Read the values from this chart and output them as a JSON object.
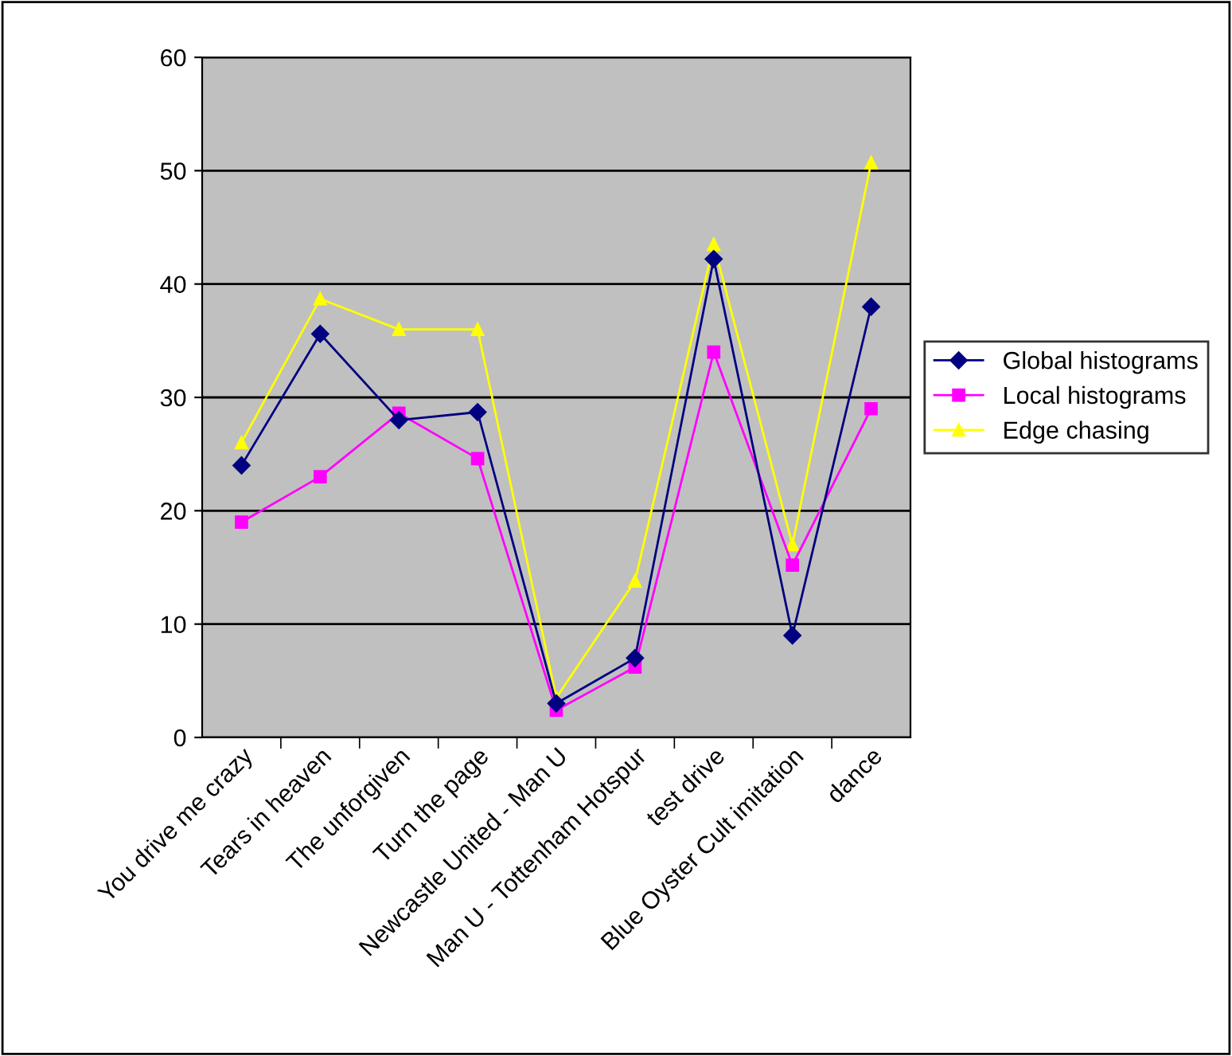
{
  "chart_data": {
    "type": "line",
    "categories": [
      "You drive me crazy",
      "Tears in heaven",
      "The unforgiven",
      "Turn the page",
      "Newcastle United - Man U",
      "Man U - Tottenham Hotspur",
      "test drive",
      "Blue Oyster Cult imitation",
      "dance"
    ],
    "series": [
      {
        "name": "Global histograms",
        "color": "#000080",
        "marker": "diamond",
        "values": [
          24,
          35.6,
          28,
          28.7,
          3,
          7,
          42.2,
          9,
          38
        ]
      },
      {
        "name": "Local histograms",
        "color": "#ff00ff",
        "marker": "square",
        "values": [
          19,
          23,
          28.6,
          24.6,
          2.4,
          6.2,
          34,
          15.2,
          29
        ]
      },
      {
        "name": "Edge chasing",
        "color": "#ffff00",
        "marker": "triangle",
        "values": [
          26,
          38.7,
          36,
          36,
          3.5,
          13.8,
          43.5,
          17,
          50.7
        ]
      }
    ],
    "ylim": [
      0,
      60
    ],
    "yticks": [
      0,
      10,
      20,
      30,
      40,
      50,
      60
    ],
    "grid": "y",
    "legend": "right",
    "line_style": "solid"
  }
}
